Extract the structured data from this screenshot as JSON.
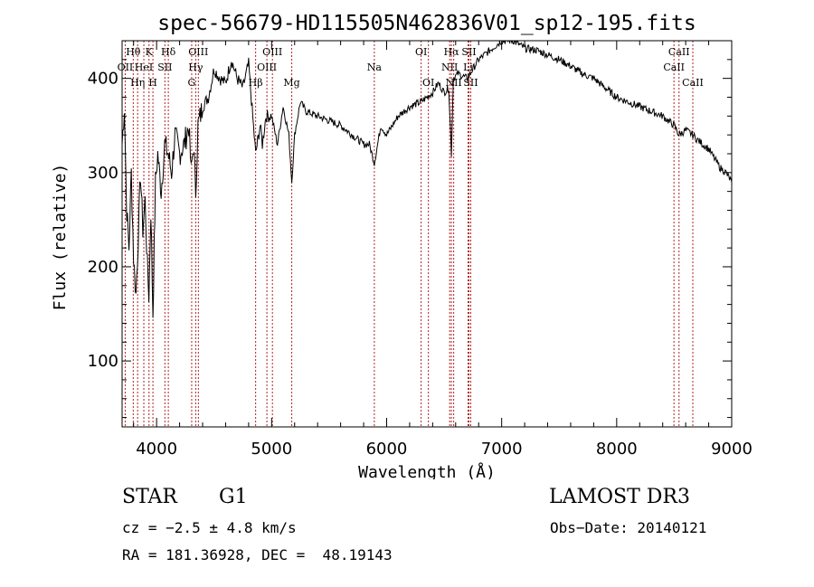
{
  "chart_data": {
    "type": "line",
    "title": "spec-56679-HD115505N462836V01_sp12-195.fits",
    "xlabel": "Wavelength (Å)",
    "ylabel": "Flux (relative)",
    "xlim": [
      3700,
      9000
    ],
    "ylim": [
      30,
      440
    ],
    "xticks": [
      4000,
      5000,
      6000,
      7000,
      8000,
      9000
    ],
    "yticks": [
      100,
      200,
      300,
      400
    ],
    "series": [
      {
        "name": "spectrum",
        "x": [
          3700,
          3720,
          3740,
          3760,
          3780,
          3800,
          3820,
          3840,
          3860,
          3880,
          3900,
          3920,
          3933,
          3950,
          3968,
          3990,
          4010,
          4040,
          4070,
          4100,
          4130,
          4160,
          4200,
          4240,
          4280,
          4300,
          4320,
          4340,
          4360,
          4400,
          4450,
          4500,
          4550,
          4600,
          4650,
          4700,
          4750,
          4800,
          4861,
          4900,
          4920,
          4950,
          5000,
          5050,
          5100,
          5150,
          5175,
          5200,
          5250,
          5300,
          5400,
          5500,
          5600,
          5700,
          5800,
          5850,
          5893,
          5950,
          6000,
          6100,
          6200,
          6300,
          6400,
          6450,
          6500,
          6540,
          6563,
          6580,
          6620,
          6700,
          6800,
          6900,
          7000,
          7100,
          7200,
          7300,
          7400,
          7500,
          7600,
          7700,
          7800,
          7900,
          8000,
          8100,
          8200,
          8300,
          8400,
          8500,
          8542,
          8600,
          8662,
          8700,
          8800,
          8850,
          8900,
          8950,
          9000
        ],
        "values": [
          330,
          370,
          260,
          220,
          300,
          210,
          170,
          230,
          300,
          240,
          270,
          200,
          170,
          260,
          150,
          290,
          320,
          280,
          330,
          320,
          300,
          340,
          320,
          330,
          350,
          300,
          330,
          280,
          350,
          370,
          380,
          410,
          400,
          395,
          420,
          400,
          390,
          415,
          320,
          350,
          330,
          360,
          360,
          330,
          370,
          340,
          290,
          340,
          375,
          365,
          360,
          355,
          350,
          340,
          330,
          330,
          310,
          350,
          340,
          360,
          370,
          375,
          385,
          395,
          385,
          390,
          320,
          400,
          405,
          400,
          420,
          430,
          440,
          440,
          432,
          430,
          425,
          420,
          413,
          405,
          400,
          390,
          380,
          375,
          370,
          365,
          360,
          350,
          340,
          345,
          340,
          335,
          325,
          315,
          305,
          300,
          290
        ]
      }
    ],
    "lines": [
      {
        "label": "Hθ",
        "wl": 3797,
        "row": 1
      },
      {
        "label": "OII",
        "wl": 3727,
        "row": 2
      },
      {
        "label": "Hη",
        "wl": 3835,
        "row": 3
      },
      {
        "label": "K",
        "wl": 3934,
        "row": 1
      },
      {
        "label": "HeI",
        "wl": 3889,
        "row": 2
      },
      {
        "label": "H",
        "wl": 3968,
        "row": 3
      },
      {
        "label": "Hδ",
        "wl": 4102,
        "row": 1
      },
      {
        "label": "SII",
        "wl": 4072,
        "row": 2
      },
      {
        "label": "OIII",
        "wl": 4363,
        "row": 1
      },
      {
        "label": "Hγ",
        "wl": 4340,
        "row": 2
      },
      {
        "label": "G",
        "wl": 4305,
        "row": 3
      },
      {
        "label": "OIII",
        "wl": 5007,
        "row": 1
      },
      {
        "label": "OIII",
        "wl": 4959,
        "row": 2
      },
      {
        "label": "Hβ",
        "wl": 4861,
        "row": 3
      },
      {
        "label": "Mg",
        "wl": 5175,
        "row": 3
      },
      {
        "label": "Na",
        "wl": 5893,
        "row": 2
      },
      {
        "label": "OI",
        "wl": 6300,
        "row": 1
      },
      {
        "label": "OI",
        "wl": 6363,
        "row": 3
      },
      {
        "label": "Hα",
        "wl": 6563,
        "row": 1
      },
      {
        "label": "SII",
        "wl": 6716,
        "row": 1
      },
      {
        "label": "NII",
        "wl": 6548,
        "row": 2
      },
      {
        "label": "Li",
        "wl": 6708,
        "row": 2
      },
      {
        "label": "NII",
        "wl": 6583,
        "row": 3
      },
      {
        "label": "SII",
        "wl": 6731,
        "row": 3
      },
      {
        "label": "CaII",
        "wl": 8542,
        "row": 1
      },
      {
        "label": "CaII",
        "wl": 8498,
        "row": 2
      },
      {
        "label": "CaII",
        "wl": 8662,
        "row": 3
      }
    ],
    "colors": {
      "spectrum": "#000000",
      "line_marker": "#b22222",
      "axes": "#000000"
    }
  },
  "footer": {
    "object_type": "STAR",
    "subclass": "G1",
    "survey": "LAMOST DR3",
    "redshift": "cz = −2.5 ± 4.8 km/s",
    "obs_date": "Obs−Date: 20140121",
    "coords": "RA = 181.36928, DEC =  48.19143"
  }
}
